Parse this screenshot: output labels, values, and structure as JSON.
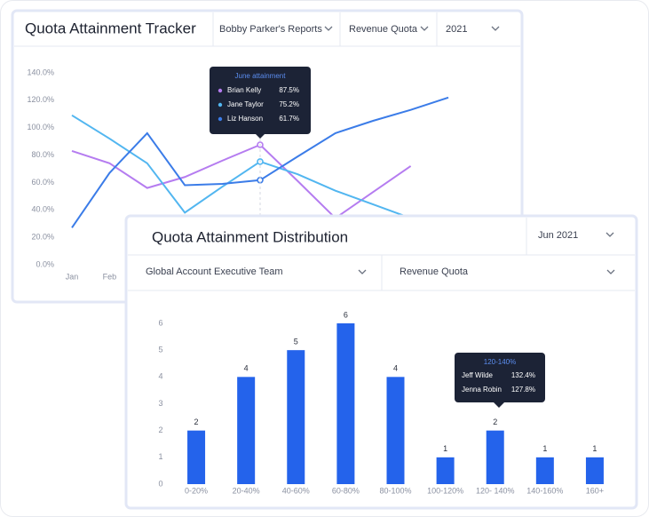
{
  "chart_data": [
    {
      "type": "line",
      "title": "Quota Attainment Tracker",
      "filters": [
        "Bobby Parker's Reports",
        "Revenue Quota",
        "2021"
      ],
      "categories": [
        "Jan",
        "Feb",
        null,
        null,
        null,
        null,
        null,
        null,
        null,
        null,
        null
      ],
      "series": [
        {
          "name": "Brian Kelly",
          "color": "#b57cf0",
          "values": [
            83,
            74,
            56,
            64,
            76,
            87.5,
            61,
            34,
            53,
            72,
            null
          ]
        },
        {
          "name": "Jane Taylor",
          "color": "#52b6f0",
          "values": [
            109,
            92,
            74,
            38,
            57,
            75.2,
            66,
            54,
            44,
            34,
            null
          ]
        },
        {
          "name": "Liz Hanson",
          "color": "#3b7ce8",
          "values": [
            27,
            67,
            96,
            58,
            59,
            61.7,
            79,
            96,
            105,
            113,
            122
          ]
        }
      ],
      "ylim": [
        0,
        140
      ],
      "yticks": [
        {
          "value": 0,
          "label": "0.0%"
        },
        {
          "value": 20,
          "label": "20.0%"
        },
        {
          "value": 40,
          "label": "40.0%"
        },
        {
          "value": 60,
          "label": "60.0%"
        },
        {
          "value": 80,
          "label": "80.0%"
        },
        {
          "value": 100,
          "label": "100.0%"
        },
        {
          "value": 120,
          "label": "120.0%"
        },
        {
          "value": 140,
          "label": "140.0%"
        }
      ],
      "tooltip": {
        "title": "June attainment",
        "rows": [
          {
            "name": "Brian Kelly",
            "label": "87.5%"
          },
          {
            "name": "Jane Taylor",
            "label": "75.2%"
          },
          {
            "name": "Liz Hanson",
            "label": "61.7%"
          }
        ]
      }
    },
    {
      "type": "bar",
      "title": "Quota Attainment Distribution",
      "filters": [
        "Jun 2021",
        "Global Account Executive Team",
        "Revenue Quota"
      ],
      "categories": [
        "0-20%",
        "20-40%",
        "40-60%",
        "60-80%",
        "80-100%",
        "100-120%",
        "120- 140%",
        "140-160%",
        "160+"
      ],
      "values": [
        2,
        4,
        5,
        6,
        4,
        1,
        2,
        1,
        1
      ],
      "color": "#2463eb",
      "ylim": [
        0,
        6
      ],
      "yticks": [
        0,
        1,
        2,
        3,
        4,
        5,
        6
      ],
      "tooltip": {
        "title": "120-140%",
        "rows": [
          {
            "name": "Jeff Wilde",
            "label": "132.4%"
          },
          {
            "name": "Jenna Robin",
            "label": "127.8%"
          }
        ]
      }
    }
  ]
}
